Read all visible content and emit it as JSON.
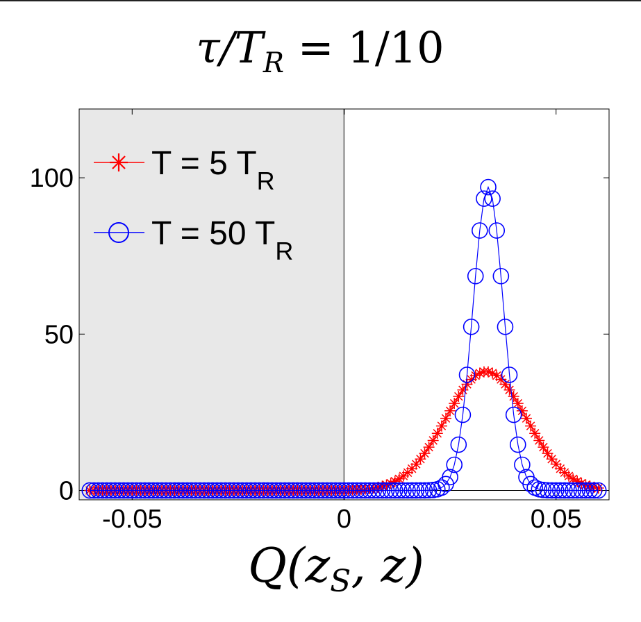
{
  "chart_data": {
    "type": "scatter",
    "title": "τ/T_R = 1/10",
    "title_main": "τ/T",
    "title_sub": "R",
    "title_rest": " = 1/10",
    "xlabel": "Q(z_S, z)",
    "xlabel_pre": "Q(z",
    "xlabel_sub": "S",
    "xlabel_post": ", z)",
    "ylabel": "",
    "xlim": [
      -0.0625,
      0.0625
    ],
    "ylim": [
      -3,
      122
    ],
    "x_ticks": [
      {
        "value": -0.05,
        "label": "-0.05"
      },
      {
        "value": 0,
        "label": "0"
      },
      {
        "value": 0.05,
        "label": "0.05"
      }
    ],
    "y_ticks": [
      {
        "value": 0,
        "label": "0"
      },
      {
        "value": 50,
        "label": "50"
      },
      {
        "value": 100,
        "label": "100"
      }
    ],
    "shaded_region": {
      "x": [
        -0.0625,
        0
      ],
      "color": "#e8e8e8"
    },
    "legend": {
      "placement": "top-left"
    },
    "series": [
      {
        "name": "T = 5 T_R",
        "label_main": "T = 5 T",
        "label_sub": "R",
        "color": "#ff0000",
        "marker": "star",
        "center": 0.0335,
        "width": 0.0095,
        "peak": 38
      },
      {
        "name": "T = 50 T_R",
        "label_main": "T = 50 T",
        "label_sub": "R",
        "color": "#0000ff",
        "marker": "circle",
        "center": 0.034,
        "width": 0.0036,
        "peak": 97
      }
    ]
  }
}
